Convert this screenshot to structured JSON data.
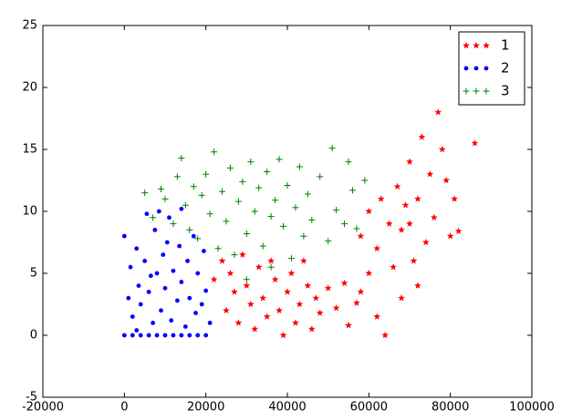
{
  "chart_data": {
    "type": "scatter",
    "xlim": [
      -20000,
      100000
    ],
    "xticks": [
      -20000,
      0,
      20000,
      40000,
      60000,
      80000,
      100000
    ],
    "ylim": [
      -5,
      25
    ],
    "yticks": [
      -5,
      0,
      5,
      10,
      15,
      20,
      25
    ],
    "legend": "upper right",
    "series": [
      {
        "name": "1",
        "color": "#ff0000",
        "marker": "star",
        "x": [
          22000,
          24000,
          25000,
          26000,
          27000,
          28000,
          29000,
          30000,
          31000,
          32000,
          33000,
          34000,
          35000,
          36000,
          37000,
          38000,
          39000,
          40000,
          41000,
          42000,
          43000,
          44000,
          45000,
          46000,
          47000,
          48000,
          50000,
          52000,
          54000,
          55000,
          57000,
          58000,
          60000,
          62000,
          64000,
          58000,
          60000,
          62000,
          63000,
          65000,
          66000,
          67000,
          68000,
          69000,
          70000,
          70000,
          71000,
          72000,
          73000,
          74000,
          75000,
          76000,
          77000,
          78000,
          79000,
          80000,
          81000,
          82000,
          86000,
          68000,
          72000
        ],
        "values": [
          4.5,
          6,
          2,
          5,
          3.5,
          1,
          6.5,
          4,
          2.5,
          0.5,
          5.5,
          3,
          1.5,
          6,
          4.5,
          2,
          0,
          3.5,
          5,
          1,
          2.5,
          6,
          4,
          0.5,
          3,
          1.8,
          3.8,
          2.2,
          4.2,
          0.8,
          2.6,
          3.5,
          5,
          1.5,
          0,
          8,
          10,
          7,
          11,
          9,
          5.5,
          12,
          8.5,
          10.5,
          14,
          9,
          6,
          11,
          16,
          7.5,
          13,
          9.5,
          18,
          15,
          12.5,
          8,
          11,
          8.4,
          15.5,
          3,
          4
        ]
      },
      {
        "name": "2",
        "color": "#0000ff",
        "marker": "dot",
        "x": [
          0,
          2000,
          4000,
          6000,
          8000,
          10000,
          12000,
          14000,
          16000,
          18000,
          20000,
          0,
          1000,
          1500,
          2000,
          3000,
          3500,
          4000,
          5000,
          5500,
          6000,
          7000,
          7500,
          8000,
          9000,
          9500,
          10000,
          11000,
          11500,
          12000,
          13000,
          13500,
          14000,
          15000,
          15500,
          16000,
          17000,
          17500,
          18000,
          19000,
          19500,
          20000,
          21000,
          14000,
          8500,
          6500,
          3000,
          10500
        ],
        "values": [
          0,
          0,
          0,
          0,
          0,
          0,
          0,
          0,
          0,
          0,
          0,
          8,
          3,
          5.5,
          1.5,
          7,
          4,
          2.5,
          6,
          9.8,
          3.5,
          1,
          8.5,
          5,
          2,
          6.5,
          3.8,
          9.5,
          1.2,
          5.2,
          2.8,
          7.2,
          4.3,
          0.7,
          6,
          3,
          8,
          1.8,
          5,
          2.5,
          6.8,
          3.6,
          1,
          10.2,
          10,
          4.8,
          0.4,
          7.5
        ]
      },
      {
        "name": "3",
        "color": "#008000",
        "marker": "plus",
        "x": [
          5000,
          7000,
          9000,
          10000,
          12000,
          13000,
          14000,
          15000,
          16000,
          17000,
          18000,
          19000,
          20000,
          21000,
          22000,
          23000,
          24000,
          25000,
          26000,
          27000,
          28000,
          29000,
          30000,
          31000,
          32000,
          33000,
          34000,
          35000,
          36000,
          37000,
          38000,
          39000,
          40000,
          41000,
          42000,
          43000,
          44000,
          45000,
          46000,
          48000,
          50000,
          51000,
          52000,
          54000,
          55000,
          56000,
          57000,
          59000,
          30000,
          36000
        ],
        "values": [
          11.5,
          9.5,
          11.8,
          11,
          9,
          12.8,
          14.3,
          10.5,
          8.5,
          12,
          7.8,
          11.3,
          13,
          9.8,
          14.8,
          7,
          11.6,
          9.2,
          13.5,
          6.5,
          10.8,
          12.4,
          8.2,
          14,
          10,
          11.9,
          7.2,
          13.2,
          9.6,
          10.9,
          14.2,
          8.8,
          12.1,
          6.2,
          10.3,
          13.6,
          8,
          11.4,
          9.3,
          12.8,
          7.6,
          15.1,
          10.1,
          9,
          14,
          11.7,
          8.6,
          12.5,
          4.5,
          5.5
        ]
      }
    ]
  }
}
